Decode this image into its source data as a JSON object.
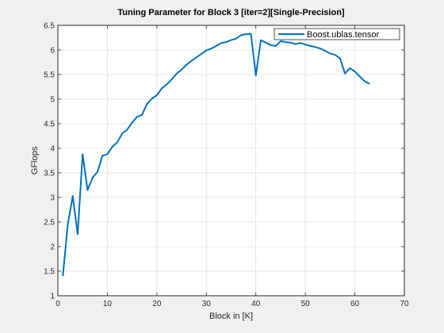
{
  "chart_data": {
    "type": "line",
    "title": "Tuning Parameter for Block 3 [iter=2][Single-Precision]",
    "xlabel": "Block in [K]",
    "ylabel": "GFlops",
    "xlim": [
      0,
      70
    ],
    "ylim": [
      1,
      6.5
    ],
    "xticks": [
      "0",
      "10",
      "20",
      "30",
      "40",
      "50",
      "60",
      "70"
    ],
    "yticks": [
      "1",
      "1.5",
      "2",
      "2.5",
      "3",
      "3.5",
      "4",
      "4.5",
      "5",
      "5.5",
      "6",
      "6.5"
    ],
    "grid": true,
    "legend_position": "top-right",
    "series": [
      {
        "name": "Boost.ublas.tensor",
        "color": "#0072BD",
        "x": [
          1,
          2,
          3,
          4,
          5,
          6,
          7,
          8,
          9,
          10,
          11,
          12,
          13,
          14,
          15,
          16,
          17,
          18,
          19,
          20,
          21,
          22,
          23,
          24,
          25,
          26,
          27,
          28,
          29,
          30,
          31,
          32,
          33,
          34,
          35,
          36,
          37,
          38,
          39,
          40,
          41,
          42,
          43,
          44,
          45,
          46,
          47,
          48,
          49,
          50,
          51,
          52,
          53,
          54,
          55,
          56,
          57,
          58,
          59,
          60,
          61,
          62,
          63
        ],
        "values": [
          1.4,
          2.45,
          3.03,
          2.25,
          3.88,
          3.15,
          3.4,
          3.52,
          3.85,
          3.88,
          4.03,
          4.12,
          4.3,
          4.38,
          4.52,
          4.64,
          4.68,
          4.9,
          5.01,
          5.08,
          5.22,
          5.3,
          5.4,
          5.52,
          5.6,
          5.7,
          5.78,
          5.85,
          5.92,
          5.99,
          6.03,
          6.08,
          6.14,
          6.16,
          6.2,
          6.23,
          6.3,
          6.32,
          6.33,
          5.48,
          6.2,
          6.15,
          6.1,
          6.08,
          6.18,
          6.16,
          6.15,
          6.12,
          6.14,
          6.11,
          6.08,
          6.06,
          6.03,
          5.98,
          5.93,
          5.9,
          5.83,
          5.52,
          5.63,
          5.56,
          5.46,
          5.36,
          5.31
        ]
      }
    ]
  }
}
